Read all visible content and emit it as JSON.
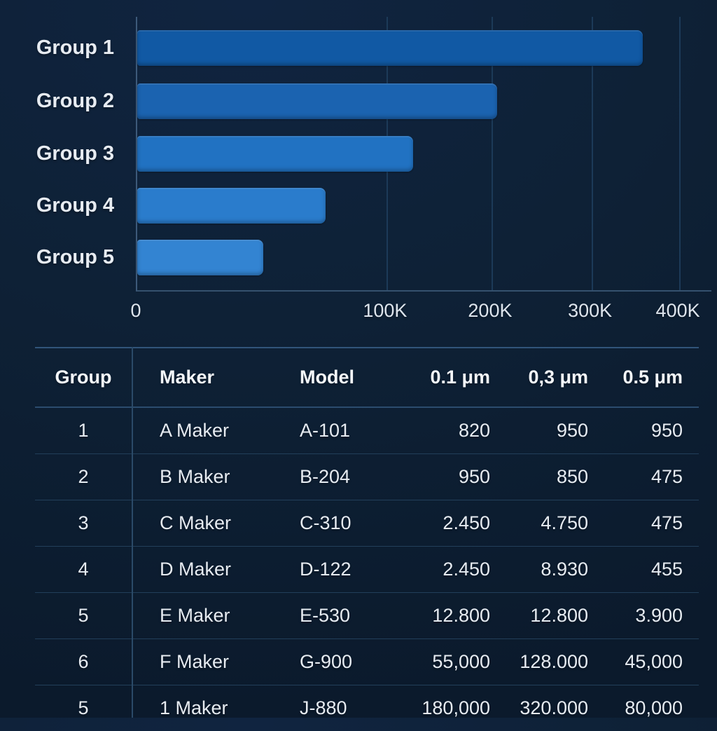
{
  "chart_data": {
    "type": "bar",
    "orientation": "horizontal",
    "title": "",
    "xlabel": "",
    "ylabel": "",
    "categories": [
      "Group 1",
      "Group 2",
      "Group 3",
      "Group 4",
      "Group 5"
    ],
    "values": [
      350000,
      210000,
      125000,
      76000,
      51000
    ],
    "xlim": [
      0,
      400000
    ],
    "x_ticks": [
      {
        "label": "0",
        "pct": 0
      },
      {
        "label": "100K",
        "pct": 43.4
      },
      {
        "label": "200K",
        "pct": 61.7
      },
      {
        "label": "300K",
        "pct": 79.1
      },
      {
        "label": "400K",
        "pct": 94.4
      }
    ],
    "bar_pct": [
      88.0,
      62.7,
      48.0,
      32.8,
      22.0
    ],
    "bar_colors": [
      "#1159a4",
      "#1b63b0",
      "#2172c2",
      "#2a7ccc",
      "#3384d2"
    ],
    "grid": true,
    "legend": false
  },
  "table": {
    "headers": [
      "Group",
      "Maker",
      "Model",
      "0.1 μm",
      "0,3 μm",
      "0.5 μm"
    ],
    "rows": [
      [
        "1",
        "A Maker",
        "A-101",
        "820",
        "950",
        "950"
      ],
      [
        "2",
        "B Maker",
        "B-204",
        "950",
        "850",
        "475"
      ],
      [
        "3",
        "C Maker",
        "C-310",
        "2.450",
        "4.750",
        "475"
      ],
      [
        "4",
        "D Maker",
        "D-122",
        "2.450",
        "8.930",
        "455"
      ],
      [
        "5",
        "E Maker",
        "E-530",
        "12.800",
        "12.800",
        "3.900"
      ],
      [
        "6",
        "F Maker",
        "G-900",
        "55,000",
        "128.000",
        "45,000"
      ],
      [
        "5",
        "1 Maker",
        "J-880",
        "180,000",
        "320.000",
        "80,000"
      ]
    ]
  },
  "colors": {
    "background": "#0e2136",
    "axis": "#3d5a7a",
    "gridline": "#1c3a58",
    "table_line": "#223f5a",
    "text": "#e8edf3"
  }
}
